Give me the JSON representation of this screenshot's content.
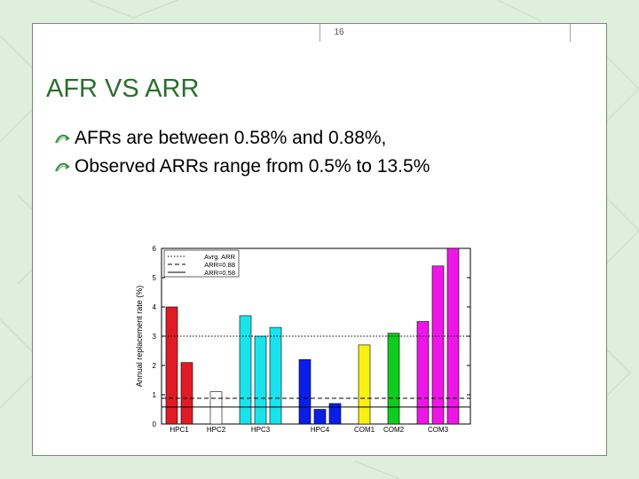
{
  "slide": {
    "page_number": "16",
    "title": "AFR VS ARR",
    "bullets": [
      "AFRs are between 0.58% and 0.88%,",
      "Observed ARRs range from 0.5% to 13.5%"
    ],
    "bullet_icon": "ribbon-arrow-icon",
    "colors": {
      "title": "#2b6e2e",
      "background": "#dfeedd"
    }
  },
  "chart_data": {
    "type": "bar",
    "title": "",
    "xlabel": "",
    "ylabel": "Annual replacement rate (%)",
    "ylim": [
      0,
      6
    ],
    "yticks": [
      0,
      1,
      2,
      3,
      4,
      5,
      6
    ],
    "grid": false,
    "groups": [
      {
        "label": "HPC1",
        "values": [
          4.0,
          2.1
        ],
        "color": "#e01b24"
      },
      {
        "label": "HPC2",
        "values": [
          1.1
        ],
        "color": "#ffffff"
      },
      {
        "label": "HPC3",
        "values": [
          3.7,
          3.0,
          3.3
        ],
        "color": "#19e3ec"
      },
      {
        "label": "HPC4",
        "values": [
          2.2,
          0.5,
          0.7
        ],
        "color": "#0a1ee8"
      },
      {
        "label": "COM1",
        "values": [
          2.7
        ],
        "color": "#f7f214"
      },
      {
        "label": "COM2",
        "values": [
          3.1
        ],
        "color": "#0fcc1d"
      },
      {
        "label": "COM3",
        "values": [
          3.5,
          5.4,
          6.0
        ],
        "color": "#ee16e6"
      }
    ],
    "reference_lines": [
      {
        "name": "Avrg. ARR",
        "value": 3.0,
        "style": "dotted"
      },
      {
        "name": "ARR=0.88",
        "value": 0.88,
        "style": "dashed"
      },
      {
        "name": "ARR=0.58",
        "value": 0.58,
        "style": "solid"
      }
    ],
    "legend_position": "top-left"
  }
}
